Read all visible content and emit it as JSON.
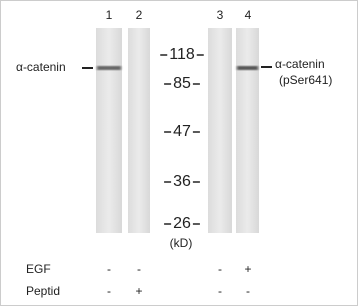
{
  "lanes": [
    "1",
    "2",
    "3",
    "4"
  ],
  "left_label": "α-catenin",
  "right_label": {
    "name": "α-catenin",
    "site": "(pSer641)"
  },
  "markers": [
    "118",
    "85",
    "47",
    "36",
    "26"
  ],
  "marker_unit": "(kD)",
  "treatments": [
    {
      "name": "EGF",
      "signs": [
        "-",
        "-",
        "-",
        "+"
      ]
    },
    {
      "name": "Peptid",
      "signs": [
        "-",
        "+",
        "-",
        "-"
      ]
    }
  ]
}
